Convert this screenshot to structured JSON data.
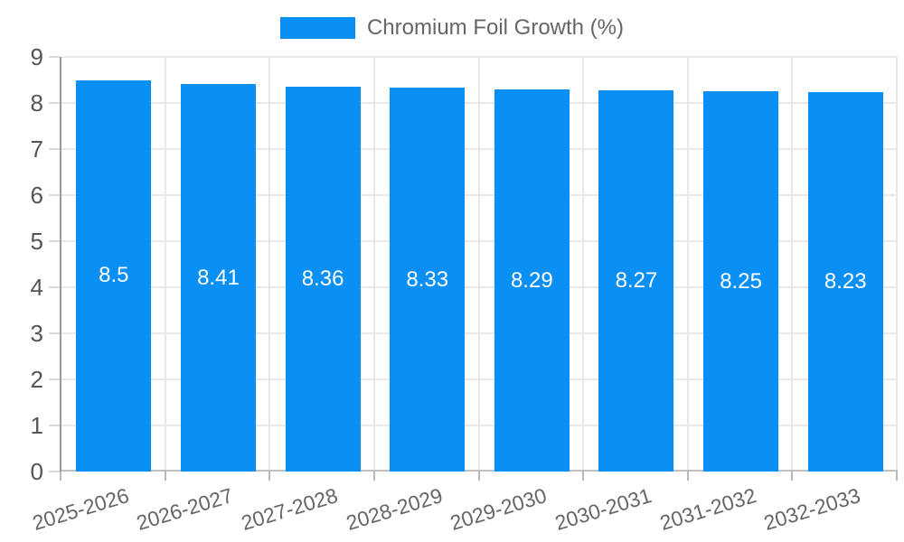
{
  "legend": {
    "series_label": "Chromium Foil Growth (%)",
    "swatch_color": "#0a8ff4"
  },
  "chart_data": {
    "type": "bar",
    "title": "Chromium Foil Growth (%)",
    "categories": [
      "2025-2026",
      "2026-2027",
      "2027-2028",
      "2028-2029",
      "2029-2030",
      "2030-2031",
      "2031-2032",
      "2032-2033"
    ],
    "values": [
      8.5,
      8.41,
      8.36,
      8.33,
      8.29,
      8.27,
      8.25,
      8.23
    ],
    "value_labels": [
      "8.5",
      "8.41",
      "8.36",
      "8.33",
      "8.29",
      "8.27",
      "8.25",
      "8.23"
    ],
    "xlabel": "",
    "ylabel": "",
    "ylim": [
      0,
      9
    ],
    "ytick_step": 1,
    "ytick_labels": [
      "0",
      "1",
      "2",
      "3",
      "4",
      "5",
      "6",
      "7",
      "8",
      "9"
    ],
    "grid": true,
    "legend_position": "top",
    "bar_color": "#0a8ff4",
    "value_label_color": "#ffffff"
  }
}
